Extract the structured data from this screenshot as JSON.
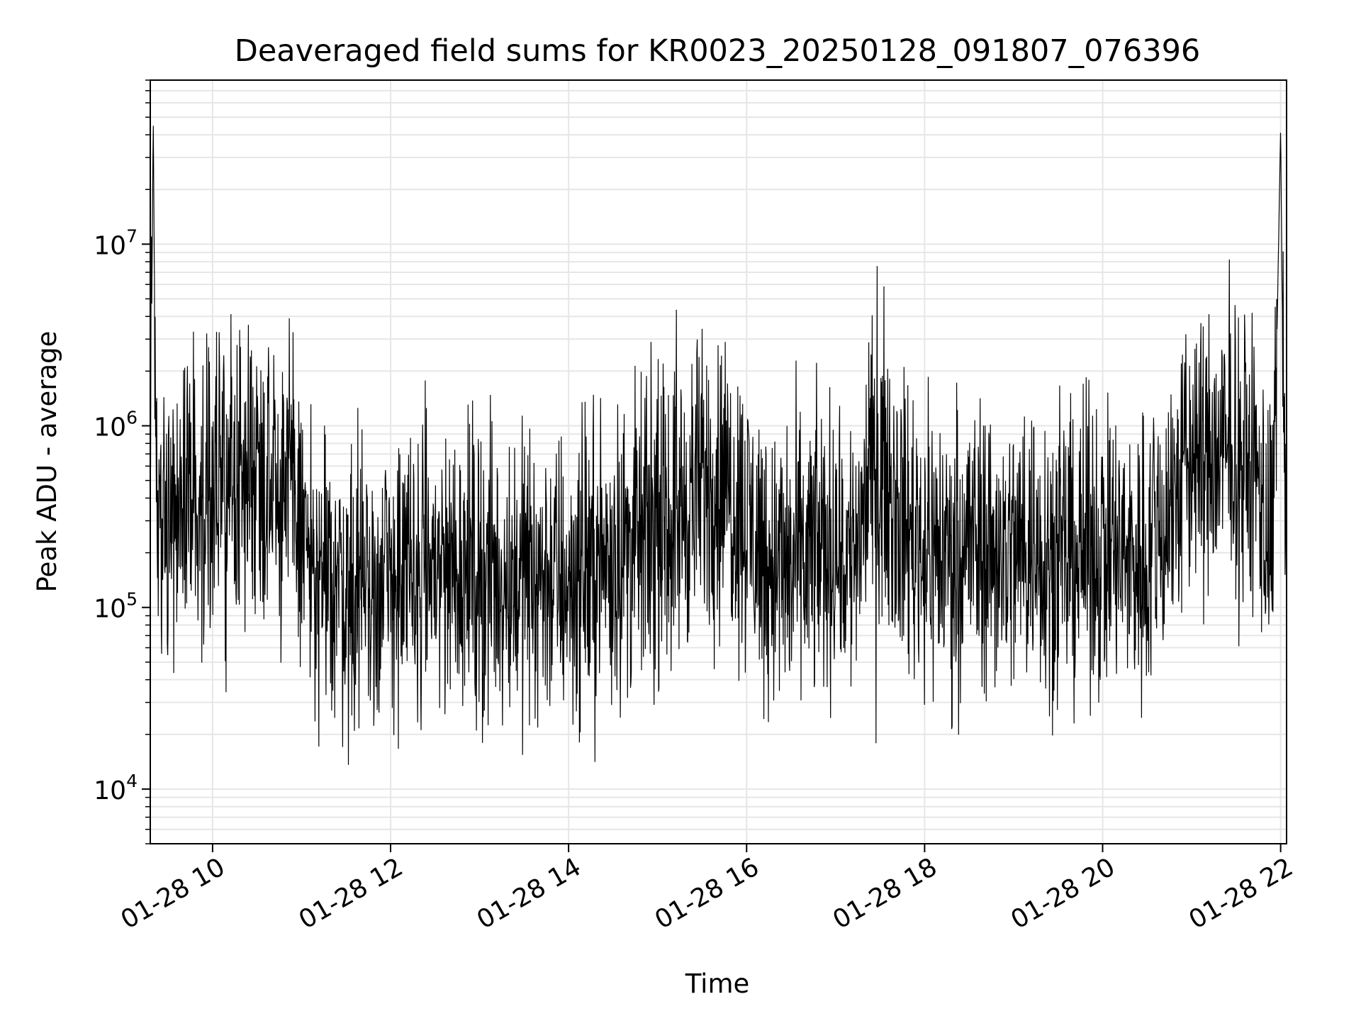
{
  "chart_data": {
    "type": "line",
    "title": "Deaveraged field sums for KR0023_20250128_091807_076396",
    "xlabel": "Time",
    "ylabel": "Peak ADU - average",
    "x_scale": "time",
    "y_scale": "log",
    "xlim": [
      "2025-01-28T09:18",
      "2025-01-28T22:04"
    ],
    "ylim": [
      5000,
      80000000
    ],
    "grid": "major and minor, light gray",
    "line_color": "#000000",
    "x_ticks": [
      {
        "value": "2025-01-28T10:00",
        "label": "01-28 10"
      },
      {
        "value": "2025-01-28T12:00",
        "label": "01-28 12"
      },
      {
        "value": "2025-01-28T14:00",
        "label": "01-28 14"
      },
      {
        "value": "2025-01-28T16:00",
        "label": "01-28 16"
      },
      {
        "value": "2025-01-28T18:00",
        "label": "01-28 18"
      },
      {
        "value": "2025-01-28T20:00",
        "label": "01-28 20"
      },
      {
        "value": "2025-01-28T22:00",
        "label": "01-28 22"
      }
    ],
    "y_ticks": [
      {
        "value": 10000,
        "base": "10",
        "exp": "4"
      },
      {
        "value": 100000,
        "base": "10",
        "exp": "5"
      },
      {
        "value": 1000000,
        "base": "10",
        "exp": "6"
      },
      {
        "value": 10000000,
        "base": "10",
        "exp": "7"
      }
    ],
    "series": [
      {
        "x": [
          "2025-01-28T09:18",
          "2025-01-28T09:20",
          "2025-01-28T09:22",
          "2025-01-28T09:25",
          "2025-01-28T09:30",
          "2025-01-28T09:40",
          "2025-01-28T09:50",
          "2025-01-28T10:00",
          "2025-01-28T10:10",
          "2025-01-28T10:20",
          "2025-01-28T10:30",
          "2025-01-28T10:40",
          "2025-01-28T10:50",
          "2025-01-28T11:00",
          "2025-01-28T11:10",
          "2025-01-28T11:20",
          "2025-01-28T11:30",
          "2025-01-28T11:40",
          "2025-01-28T11:50",
          "2025-01-28T12:00",
          "2025-01-28T12:15",
          "2025-01-28T12:30",
          "2025-01-28T12:45",
          "2025-01-28T13:00",
          "2025-01-28T13:15",
          "2025-01-28T13:30",
          "2025-01-28T13:45",
          "2025-01-28T14:00",
          "2025-01-28T14:15",
          "2025-01-28T14:30",
          "2025-01-28T14:45",
          "2025-01-28T15:00",
          "2025-01-28T15:15",
          "2025-01-28T15:30",
          "2025-01-28T15:45",
          "2025-01-28T16:00",
          "2025-01-28T16:15",
          "2025-01-28T16:30",
          "2025-01-28T16:45",
          "2025-01-28T17:00",
          "2025-01-28T17:10",
          "2025-01-28T17:20",
          "2025-01-28T17:30",
          "2025-01-28T17:45",
          "2025-01-28T18:00",
          "2025-01-28T18:15",
          "2025-01-28T18:30",
          "2025-01-28T18:45",
          "2025-01-28T19:00",
          "2025-01-28T19:15",
          "2025-01-28T19:30",
          "2025-01-28T19:45",
          "2025-01-28T20:00",
          "2025-01-28T20:15",
          "2025-01-28T20:30",
          "2025-01-28T20:45",
          "2025-01-28T21:00",
          "2025-01-28T21:15",
          "2025-01-28T21:30",
          "2025-01-28T21:45",
          "2025-01-28T21:55",
          "2025-01-28T22:00",
          "2025-01-28T22:02",
          "2025-01-28T22:04"
        ],
        "y": [
          400000,
          50000000,
          300000,
          350000,
          400000,
          450000,
          380000,
          420000,
          500000,
          550000,
          600000,
          650000,
          500000,
          300000,
          120000,
          150000,
          140000,
          130000,
          120000,
          140000,
          150000,
          170000,
          180000,
          160000,
          140000,
          160000,
          150000,
          140000,
          160000,
          200000,
          230000,
          260000,
          330000,
          480000,
          500000,
          300000,
          180000,
          160000,
          200000,
          220000,
          180000,
          400000,
          700000,
          300000,
          220000,
          200000,
          230000,
          210000,
          200000,
          240000,
          180000,
          200000,
          220000,
          180000,
          200000,
          350000,
          700000,
          650000,
          700000,
          500000,
          200000,
          45000000,
          600000,
          550000
        ]
      }
    ]
  }
}
